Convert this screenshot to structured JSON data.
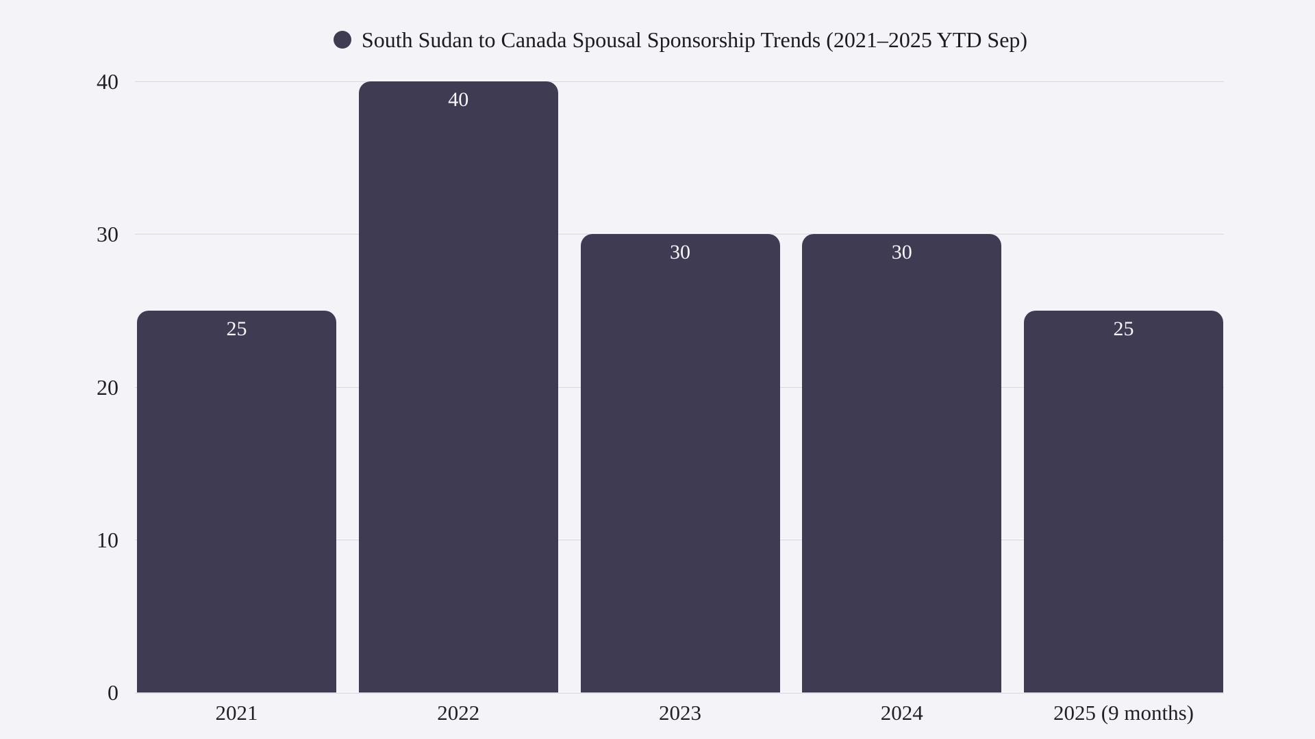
{
  "legend": {
    "label": "South Sudan to Canada Spousal Sponsorship Trends (2021–2025 YTD Sep)"
  },
  "chart_data": {
    "type": "bar",
    "title": "South Sudan to Canada Spousal Sponsorship Trends (2021–2025 YTD Sep)",
    "categories": [
      "2021",
      "2022",
      "2023",
      "2024",
      "2025 (9 months)"
    ],
    "values": [
      25,
      40,
      30,
      30,
      25
    ],
    "value_labels": [
      "25",
      "40",
      "30",
      "30",
      "25"
    ],
    "xlabel": "",
    "ylabel": "",
    "ylim": [
      0,
      40
    ],
    "yticks": [
      0,
      10,
      20,
      30,
      40
    ],
    "grid": true,
    "legend_position": "top-center",
    "series_name": "South Sudan to Canada Spousal Sponsorship Trends (2021–2025 YTD Sep)"
  },
  "colors": {
    "background": "#f4f4f8",
    "bar": "#3e3b52",
    "gridline": "#e2e3ea",
    "axis_text": "#1f2026",
    "value_label_text": "#f6f6fa",
    "title_text": "#1b1b20"
  }
}
